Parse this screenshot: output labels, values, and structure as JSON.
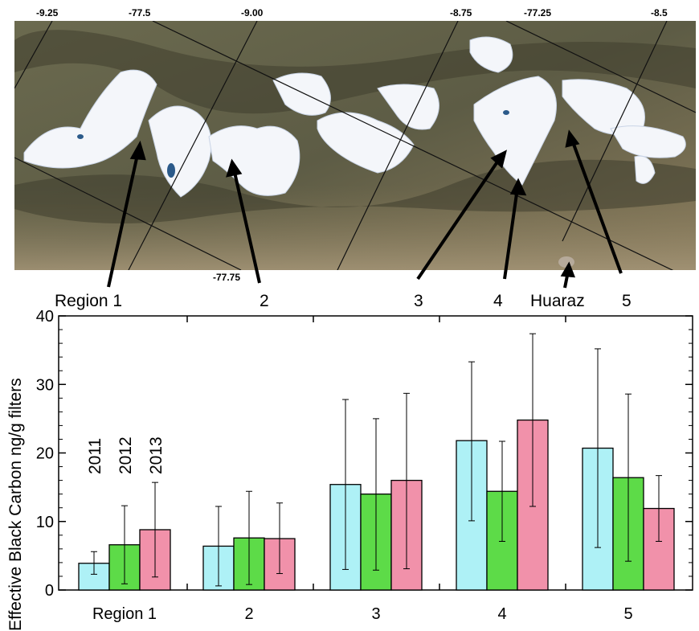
{
  "map": {
    "coord_labels": [
      "-9.25",
      "-77.5",
      "-9.00",
      "-8.75",
      "-77.25",
      "-8.5",
      "-77.75"
    ],
    "region_labels": [
      "Region 1",
      "2",
      "3",
      "4",
      "Huaraz",
      "5"
    ]
  },
  "chart_data": {
    "type": "bar",
    "title": "",
    "xlabel": "",
    "ylabel": "Effective Black Carbon ng/g filters",
    "ylim": [
      0,
      40
    ],
    "yticks": [
      0,
      10,
      20,
      30,
      40
    ],
    "categories": [
      "Region 1",
      "2",
      "3",
      "4",
      "5"
    ],
    "series": [
      {
        "name": "2011",
        "color": "#aef1f6",
        "values": [
          3.9,
          6.4,
          15.4,
          21.8,
          20.7
        ],
        "err_low": [
          2.3,
          0.6,
          3.0,
          10.1,
          6.2
        ],
        "err_high": [
          5.6,
          12.2,
          27.8,
          33.3,
          35.2
        ]
      },
      {
        "name": "2012",
        "color": "#5ddb48",
        "values": [
          6.6,
          7.6,
          14.0,
          14.4,
          16.4
        ],
        "err_low": [
          0.9,
          0.8,
          2.9,
          7.1,
          4.2
        ],
        "err_high": [
          12.3,
          14.4,
          25.0,
          21.7,
          28.6
        ]
      },
      {
        "name": "2013",
        "color": "#f191aa",
        "values": [
          8.8,
          7.5,
          16.0,
          24.8,
          11.9
        ],
        "err_low": [
          1.9,
          2.4,
          3.1,
          12.2,
          7.1
        ],
        "err_high": [
          15.7,
          12.7,
          28.7,
          37.4,
          16.7
        ]
      }
    ],
    "legend": "vertical year labels above Region 1 bars",
    "grid": false
  }
}
